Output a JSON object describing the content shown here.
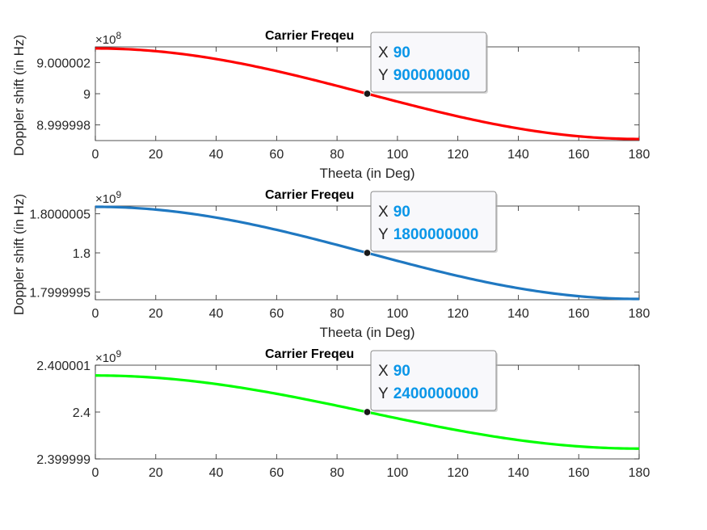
{
  "chart_data": [
    {
      "type": "line",
      "title": "Carrier Freqeu",
      "xlabel": "Theeta (in Deg)",
      "ylabel": "Doppler shift (in Hz)",
      "exponent_label": "×10",
      "exponent_power": "8",
      "xlim": [
        0,
        180
      ],
      "ylim": [
        899999700,
        900000300
      ],
      "xticks": [
        0,
        20,
        40,
        60,
        80,
        100,
        120,
        140,
        160,
        180
      ],
      "xtick_labels": [
        "0",
        "20",
        "40",
        "60",
        "80",
        "100",
        "120",
        "140",
        "160",
        "180"
      ],
      "yticks": [
        899999800,
        900000000,
        900000200
      ],
      "ytick_labels": [
        "8.999998",
        "9",
        "9.000002"
      ],
      "series": [
        {
          "color": "#ff0000",
          "curve": "center + amplitude*cos(theta)",
          "center": 900000000,
          "amplitude": 290,
          "x_range": [
            0,
            180
          ]
        }
      ],
      "datatip": {
        "x_label": "X",
        "x_value": "90",
        "y_label": "Y",
        "y_value": "900000000",
        "point_x": 90,
        "point_y": 900000000
      }
    },
    {
      "type": "line",
      "title": "Carrier Freqeu",
      "xlabel": "Theeta (in Deg)",
      "ylabel": "Doppler shift (in Hz)",
      "exponent_label": "×10",
      "exponent_power": "9",
      "xlim": [
        0,
        180
      ],
      "ylim": [
        1799999400,
        1800000600
      ],
      "xticks": [
        0,
        20,
        40,
        60,
        80,
        100,
        120,
        140,
        160,
        180
      ],
      "xtick_labels": [
        "0",
        "20",
        "40",
        "60",
        "80",
        "100",
        "120",
        "140",
        "160",
        "180"
      ],
      "yticks": [
        1799999500,
        1800000000,
        1800000500
      ],
      "ytick_labels": [
        "1.7999995",
        "1.8",
        "1.8000005"
      ],
      "series": [
        {
          "color": "#1f78c1",
          "curve": "center + amplitude*cos(theta)",
          "center": 1800000000,
          "amplitude": 590,
          "x_range": [
            0,
            180
          ]
        }
      ],
      "datatip": {
        "x_label": "X",
        "x_value": "90",
        "y_label": "Y",
        "y_value": "1800000000",
        "point_x": 90,
        "point_y": 1800000000
      }
    },
    {
      "type": "line",
      "title": "Carrier Freqeu",
      "xlabel": "",
      "ylabel": "",
      "exponent_label": "×10",
      "exponent_power": "9",
      "xlim": [
        0,
        180
      ],
      "ylim": [
        2399999000,
        2400001000
      ],
      "xticks": [
        0,
        20,
        40,
        60,
        80,
        100,
        120,
        140,
        160,
        180
      ],
      "xtick_labels": [
        "0",
        "20",
        "40",
        "60",
        "80",
        "100",
        "120",
        "140",
        "160",
        "180"
      ],
      "yticks": [
        2399999000,
        2400000000,
        2400001000
      ],
      "ytick_labels": [
        "2.399999",
        "2.4",
        "2.400001"
      ],
      "series": [
        {
          "color": "#00ff00",
          "curve": "center + amplitude*cos(theta)",
          "center": 2400000000,
          "amplitude": 780,
          "x_range": [
            0,
            180
          ]
        }
      ],
      "datatip": {
        "x_label": "X",
        "x_value": "90",
        "y_label": "Y",
        "y_value": "2400000000",
        "point_x": 90,
        "point_y": 2400000000
      }
    }
  ]
}
